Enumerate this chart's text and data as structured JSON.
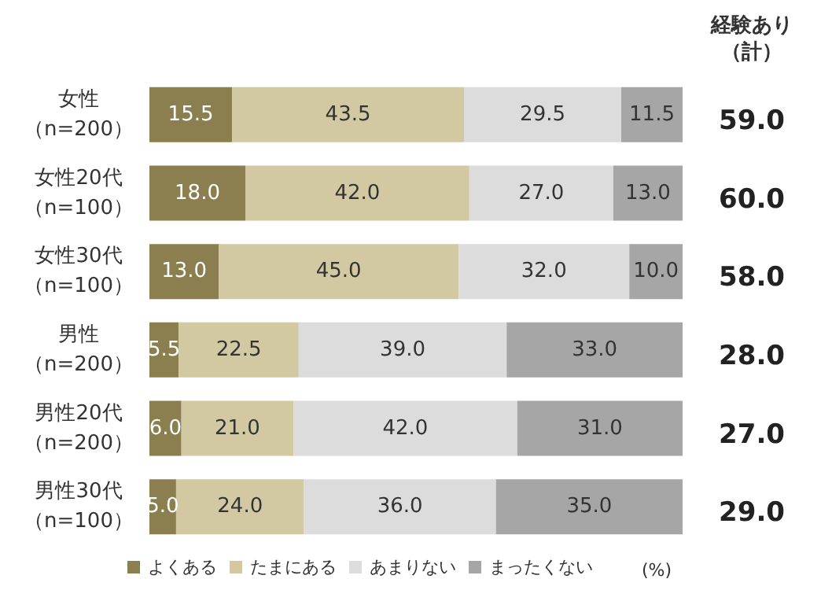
{
  "chart_data": {
    "type": "bar",
    "orientation": "horizontal",
    "stacked": true,
    "tick_labels": "y",
    "legend": "bottom",
    "xlabel": "(%)",
    "categories": [
      "女性（n=200）",
      "女性20代（n=100）",
      "女性30代（n=100）",
      "男性（n=200）",
      "男性20代（n=200）",
      "男性30代（n=100）"
    ],
    "xlim": [
      0,
      100
    ],
    "series": [
      {
        "name": "よくある",
        "color": "#8c7f4f",
        "values": [
          15.5,
          18.0,
          13.0,
          5.5,
          6.0,
          5.0
        ],
        "value_labels": [
          "15.5",
          "18.0",
          "13.0",
          "5.5",
          "6.0",
          "5.0"
        ]
      },
      {
        "name": "たまにある",
        "color": "#d2c8a2",
        "values": [
          43.5,
          42.0,
          45.0,
          22.5,
          21.0,
          24.0
        ],
        "value_labels": [
          "43.5",
          "42.0",
          "45.0",
          "22.5",
          "21.0",
          "24.0"
        ]
      },
      {
        "name": "あまりない",
        "color": "#dcdcdc",
        "values": [
          29.5,
          27.0,
          32.0,
          39.0,
          42.0,
          36.0
        ],
        "value_labels": [
          "29.5",
          "27.0",
          "32.0",
          "39.0",
          "42.0",
          "36.0"
        ]
      },
      {
        "name": "まったくない",
        "color": "#a6a6a6",
        "values": [
          11.5,
          13.0,
          10.0,
          33.0,
          31.0,
          35.0
        ],
        "value_labels": [
          "11.5",
          "13.0",
          "10.0",
          "33.0",
          "31.0",
          "35.0"
        ]
      }
    ],
    "annotations": [
      "経験あり（計）",
      "59.0",
      "60.0",
      "58.0",
      "28.0",
      "27.0",
      "29.0"
    ]
  }
}
